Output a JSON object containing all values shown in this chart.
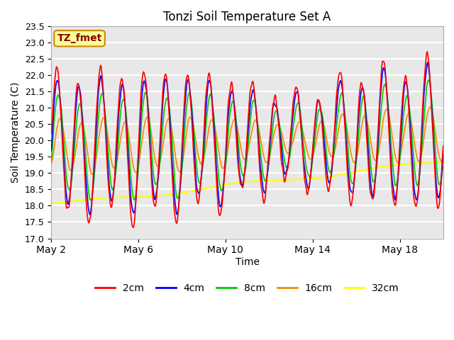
{
  "title": "Tonzi Soil Temperature Set A",
  "xlabel": "Time",
  "ylabel": "Soil Temperature (C)",
  "annotation": "TZ_fmet",
  "ylim": [
    17.0,
    23.5
  ],
  "yticks": [
    17.0,
    17.5,
    18.0,
    18.5,
    19.0,
    19.5,
    20.0,
    20.5,
    21.0,
    21.5,
    22.0,
    22.5,
    23.0,
    23.5
  ],
  "xtick_labels": [
    "May 2",
    "May 6",
    "May 10",
    "May 14",
    "May 18"
  ],
  "colors": {
    "2cm": "#ff0000",
    "4cm": "#0000ff",
    "8cm": "#00cc00",
    "16cm": "#ff8800",
    "32cm": "#ffff00"
  },
  "plot_bg_color": "#e8e8e8",
  "grid_color": "#ffffff",
  "annotation_bg": "#ffff99",
  "annotation_border": "#cc8800",
  "annotation_text_color": "#880000"
}
